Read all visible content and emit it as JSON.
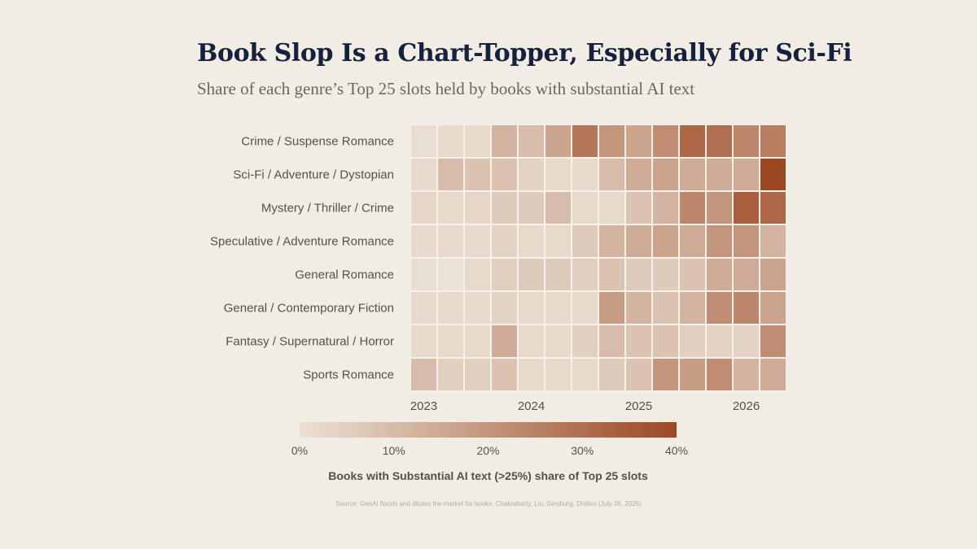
{
  "header": {
    "title": "Book Slop Is a Chart-Topper, Especially for Sci-Fi",
    "subtitle": "Share of each genre’s Top 25 slots held by books with substantial AI text"
  },
  "source": "Source: GenAI floods and dilutes the market for books, Chakrabarty, Liu, Ginsburg, Dhillon (July 26, 2026)",
  "colors": {
    "background": "#f1ece4",
    "scale_low": "#ebe2d6",
    "scale_high": "#9c4823",
    "cell_gap": "#f7f1e9",
    "label_text": "#555149",
    "title_text": "#16213d"
  },
  "chart_data": {
    "type": "heatmap",
    "rows": [
      "Crime / Suspense Romance",
      "Sci-Fi / Adventure / Dystopian",
      "Mystery / Thriller / Crime",
      "Speculative / Adventure Romance",
      "General Romance",
      "General / Contemporary Fiction",
      "Fantasy / Supernatural / Horror",
      "Sports Romance"
    ],
    "x_tick_labels": [
      "2023",
      "2024",
      "2025",
      "2026"
    ],
    "x_tick_column_index": [
      0.5,
      4.5,
      8.5,
      12.5
    ],
    "columns": 14,
    "values": [
      [
        1,
        2,
        2,
        12,
        10,
        16,
        28,
        20,
        16,
        22,
        32,
        30,
        24,
        26
      ],
      [
        2,
        10,
        8,
        8,
        4,
        2,
        2,
        10,
        14,
        16,
        14,
        14,
        14,
        40
      ],
      [
        3,
        2,
        3,
        6,
        6,
        10,
        2,
        2,
        8,
        12,
        24,
        20,
        34,
        32
      ],
      [
        2,
        2,
        2,
        4,
        2,
        2,
        6,
        12,
        14,
        16,
        14,
        20,
        20,
        12
      ],
      [
        1,
        0,
        2,
        5,
        6,
        6,
        5,
        8,
        6,
        6,
        8,
        14,
        14,
        16
      ],
      [
        2,
        2,
        2,
        4,
        2,
        2,
        2,
        18,
        12,
        8,
        12,
        22,
        24,
        16
      ],
      [
        2,
        2,
        2,
        14,
        2,
        2,
        5,
        10,
        8,
        8,
        5,
        4,
        4,
        22
      ],
      [
        10,
        5,
        5,
        8,
        2,
        2,
        2,
        6,
        8,
        20,
        18,
        22,
        12,
        14
      ]
    ],
    "colorbar": {
      "min": 0,
      "max": 40,
      "ticks": [
        0,
        10,
        20,
        30,
        40
      ],
      "tick_labels": [
        "0%",
        "10%",
        "20%",
        "30%",
        "40%"
      ],
      "label": "Books with Substantial AI text (>25%) share of Top 25 slots"
    }
  }
}
